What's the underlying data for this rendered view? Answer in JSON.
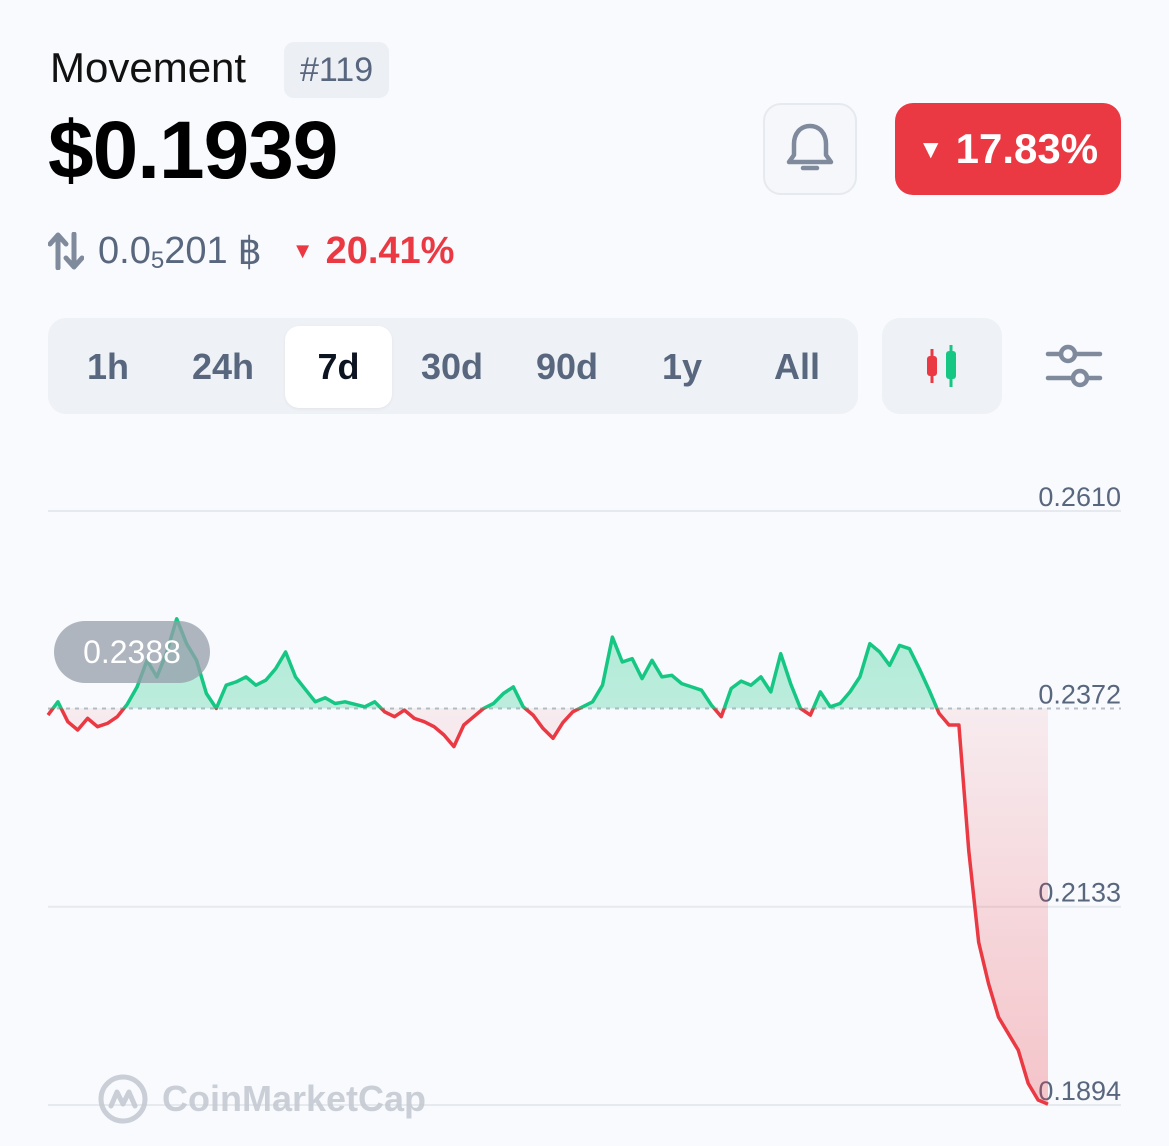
{
  "coin": {
    "name": "Movement",
    "rank": "#119",
    "price": "$0.1939",
    "change_7d": "17.83%",
    "change_direction": "down"
  },
  "btc": {
    "price_prefix": "0.0",
    "price_subscript": "5",
    "price_digits": "201",
    "symbol": "฿",
    "change": "20.41%"
  },
  "tabs": [
    {
      "label": "1h",
      "active": false
    },
    {
      "label": "24h",
      "active": false
    },
    {
      "label": "7d",
      "active": true
    },
    {
      "label": "30d",
      "active": false
    },
    {
      "label": "90d",
      "active": false
    },
    {
      "label": "1y",
      "active": false
    },
    {
      "label": "All",
      "active": false
    }
  ],
  "icons": {
    "alert": "bell-icon",
    "chart_type": "candlestick-icon",
    "settings": "sliders-icon",
    "price_pair": "swap-arrows-icon"
  },
  "colors": {
    "up": "#16c784",
    "down": "#ea3943",
    "muted": "#58667e"
  },
  "chart_data": {
    "type": "line",
    "reference_label": "0.2388",
    "baseline": 0.2372,
    "y_ticks": [
      "0.2610",
      "0.2372",
      "0.2133",
      "0.1894"
    ],
    "ylim": [
      0.1894,
      0.261
    ],
    "grid": true,
    "series": [
      {
        "values": [
          0.2364,
          0.238,
          0.2356,
          0.2346,
          0.236,
          0.235,
          0.2354,
          0.2362,
          0.2377,
          0.2398,
          0.243,
          0.241,
          0.244,
          0.248,
          0.245,
          0.243,
          0.239,
          0.2372,
          0.24,
          0.2404,
          0.241,
          0.24,
          0.2406,
          0.242,
          0.244,
          0.241,
          0.2395,
          0.238,
          0.2385,
          0.2378,
          0.238,
          0.2377,
          0.2374,
          0.238,
          0.2368,
          0.2362,
          0.237,
          0.236,
          0.2356,
          0.235,
          0.234,
          0.2326,
          0.2352,
          0.2362,
          0.2372,
          0.2378,
          0.239,
          0.2398,
          0.2374,
          0.2364,
          0.2348,
          0.2336,
          0.2355,
          0.2368,
          0.2374,
          0.238,
          0.24,
          0.2458,
          0.2428,
          0.2432,
          0.2408,
          0.243,
          0.241,
          0.2412,
          0.2402,
          0.2398,
          0.2394,
          0.2376,
          0.2362,
          0.2396,
          0.2405,
          0.24,
          0.241,
          0.2392,
          0.2438,
          0.2402,
          0.2372,
          0.2364,
          0.2392,
          0.2374,
          0.2378,
          0.2392,
          0.241,
          0.245,
          0.244,
          0.2424,
          0.2448,
          0.2444,
          0.242,
          0.2394,
          0.2366,
          0.2352,
          0.2352,
          0.22,
          0.209,
          0.204,
          0.2,
          0.198,
          0.196,
          0.192,
          0.19,
          0.1895
        ]
      }
    ]
  },
  "watermark": "CoinMarketCap"
}
